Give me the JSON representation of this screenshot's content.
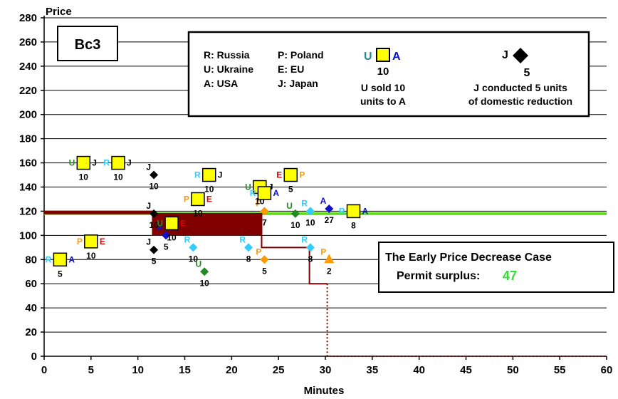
{
  "chart_data": {
    "type": "scatter",
    "title": "Bc3",
    "xlabel": "Minutes",
    "ylabel": "Price",
    "xlim": [
      0,
      60
    ],
    "ylim": [
      0,
      280
    ],
    "x_ticks": [
      "0",
      "5",
      "10",
      "15",
      "20",
      "25",
      "30",
      "35",
      "40",
      "45",
      "50",
      "55",
      "60"
    ],
    "y_ticks": [
      "0",
      "20",
      "40",
      "60",
      "80",
      "100",
      "120",
      "140",
      "160",
      "180",
      "200",
      "220",
      "240",
      "260",
      "280"
    ],
    "grid": "horizontal",
    "legend": {
      "codes": [
        {
          "text": "R: Russia"
        },
        {
          "text": "U: Ukraine"
        },
        {
          "text": "A: USA"
        },
        {
          "text": "P: Poland"
        },
        {
          "text": "E: EU"
        },
        {
          "text": "J: Japan"
        }
      ],
      "trade_example": {
        "seller": "U",
        "buyer": "A",
        "qty": "10",
        "line1": "U sold 10",
        "line2": "units to A"
      },
      "reduction_example": {
        "country": "J",
        "qty": "5",
        "line1": "J conducted 5 units",
        "line2": "of domestic reduction"
      }
    },
    "annotation": {
      "line1": "The Early Price Decrease Case",
      "line2_label": "Permit surplus:",
      "line2_value": "47"
    },
    "colors": {
      "R": "#33ccff",
      "U": "#228b22",
      "A": "#1010cc",
      "P": "#ff9900",
      "E": "#dd0000",
      "J": "#000000",
      "green_line": "#66dd22",
      "dark_red": "#800000",
      "square_fill": "#ffff00",
      "surplus_green": "#33dd33"
    },
    "trades": [
      {
        "x": 1.7,
        "y": 80,
        "seller": "R",
        "buyer": "A",
        "qty": "5"
      },
      {
        "x": 4.2,
        "y": 160,
        "seller": "U",
        "buyer": "J",
        "qty": "10"
      },
      {
        "x": 5.0,
        "y": 95,
        "seller": "P",
        "buyer": "E",
        "qty": "10"
      },
      {
        "x": 7.9,
        "y": 160,
        "seller": "R",
        "buyer": "J",
        "qty": "10"
      },
      {
        "x": 13.6,
        "y": 110,
        "seller": "U",
        "buyer": "E",
        "qty": "10"
      },
      {
        "x": 16.4,
        "y": 130,
        "seller": "P",
        "buyer": "E",
        "qty": "10"
      },
      {
        "x": 17.6,
        "y": 150,
        "seller": "R",
        "buyer": "J",
        "qty": "10"
      },
      {
        "x": 23.0,
        "y": 140,
        "seller": "U",
        "buyer": "J",
        "qty": "10"
      },
      {
        "x": 23.5,
        "y": 135,
        "seller": "R",
        "buyer": "A",
        "qty": ""
      },
      {
        "x": 26.3,
        "y": 150,
        "seller": "E",
        "buyer": "P",
        "qty": "5"
      },
      {
        "x": 33.0,
        "y": 120,
        "seller": "R",
        "buyer": "A",
        "qty": "8"
      }
    ],
    "reductions": [
      {
        "x": 11.7,
        "y": 150,
        "country": "J",
        "qty": "10",
        "shape": "diamond"
      },
      {
        "x": 11.7,
        "y": 118,
        "country": "J",
        "qty": "10",
        "shape": "diamond"
      },
      {
        "x": 11.7,
        "y": 88,
        "country": "J",
        "qty": "5",
        "shape": "diamond"
      },
      {
        "x": 13.0,
        "y": 100,
        "country": "A",
        "qty": "5",
        "shape": "diamond"
      },
      {
        "x": 15.9,
        "y": 90,
        "country": "R",
        "qty": "10",
        "shape": "diamond"
      },
      {
        "x": 17.1,
        "y": 70,
        "country": "U",
        "qty": "10",
        "shape": "diamond"
      },
      {
        "x": 21.8,
        "y": 90,
        "country": "R",
        "qty": "8",
        "shape": "diamond"
      },
      {
        "x": 23.5,
        "y": 120,
        "country": "P",
        "qty": "7",
        "shape": "diamond"
      },
      {
        "x": 23.5,
        "y": 80,
        "country": "P",
        "qty": "5",
        "shape": "diamond"
      },
      {
        "x": 26.8,
        "y": 118,
        "country": "U",
        "qty": "10",
        "shape": "diamond"
      },
      {
        "x": 28.4,
        "y": 120,
        "country": "R",
        "qty": "10",
        "shape": "diamond"
      },
      {
        "x": 28.4,
        "y": 90,
        "country": "R",
        "qty": "8",
        "shape": "diamond"
      },
      {
        "x": 30.4,
        "y": 122,
        "country": "A",
        "qty": "27",
        "shape": "diamond"
      },
      {
        "x": 30.4,
        "y": 80,
        "country": "P",
        "qty": "2",
        "shape": "triangle"
      }
    ],
    "green_line_y": 118,
    "price_step_line": [
      [
        0,
        119
      ],
      [
        11.5,
        119
      ],
      [
        11.5,
        118
      ],
      [
        23.2,
        118
      ],
      [
        23.2,
        90
      ],
      [
        28.3,
        90
      ],
      [
        28.3,
        60
      ],
      [
        30.2,
        60
      ]
    ],
    "dotted_line": [
      [
        30.2,
        60
      ],
      [
        30.2,
        0
      ],
      [
        60,
        0
      ]
    ],
    "dark_block": {
      "x0": 11.5,
      "x1": 23.2,
      "y0": 100,
      "y1": 118
    }
  }
}
